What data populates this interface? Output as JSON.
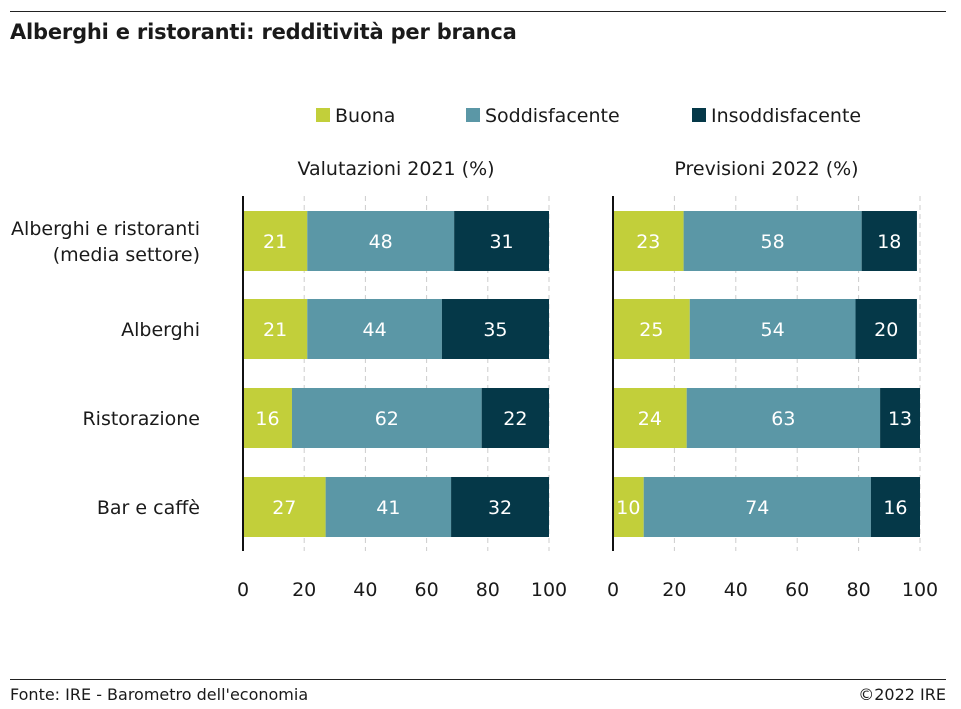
{
  "header": {
    "title": "Alberghi e ristoranti: redditività per branca"
  },
  "footer": {
    "source": "Fonte: IRE - Barometro dell'economia",
    "copyright": "©2022 IRE"
  },
  "colors": {
    "buona": "#c2cf3a",
    "soddisfacente": "#5b97a6",
    "insoddisfacente": "#053848",
    "grid": "#cccccc",
    "axis": "#111111"
  },
  "legend": [
    "Buona",
    "Soddisfacente",
    "Insoddisfacente"
  ],
  "chart_data": [
    {
      "type": "bar",
      "orientation": "horizontal",
      "stacked": true,
      "title": "Valutazioni 2021 (%)",
      "categories": [
        "Alberghi e ristoranti (media settore)",
        "Alberghi",
        "Ristorazione",
        "Bar e caffè"
      ],
      "category_lines": [
        [
          "Alberghi e ristoranti",
          "(media settore)"
        ],
        [
          "Alberghi"
        ],
        [
          "Ristorazione"
        ],
        [
          "Bar e caffè"
        ]
      ],
      "series": [
        {
          "name": "Buona",
          "values": [
            21,
            21,
            16,
            27
          ]
        },
        {
          "name": "Soddisfacente",
          "values": [
            48,
            44,
            62,
            41
          ]
        },
        {
          "name": "Insoddisfacente",
          "values": [
            31,
            35,
            22,
            32
          ]
        }
      ],
      "xlim": [
        0,
        100
      ],
      "xticks": [
        0,
        20,
        40,
        60,
        80,
        100
      ],
      "grid": true,
      "legend_position": "top"
    },
    {
      "type": "bar",
      "orientation": "horizontal",
      "stacked": true,
      "title": "Previsioni 2022 (%)",
      "categories": [
        "Alberghi e ristoranti (media settore)",
        "Alberghi",
        "Ristorazione",
        "Bar e caffè"
      ],
      "series": [
        {
          "name": "Buona",
          "values": [
            23,
            25,
            24,
            10
          ]
        },
        {
          "name": "Soddisfacente",
          "values": [
            58,
            54,
            63,
            74
          ]
        },
        {
          "name": "Insoddisfacente",
          "values": [
            18,
            20,
            13,
            16
          ]
        }
      ],
      "xlim": [
        0,
        100
      ],
      "xticks": [
        0,
        20,
        40,
        60,
        80,
        100
      ],
      "grid": true,
      "legend_position": "top"
    }
  ]
}
